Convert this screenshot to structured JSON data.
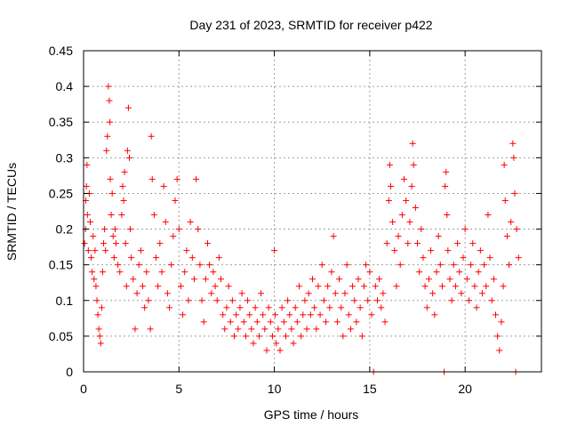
{
  "chart_data": {
    "type": "scatter",
    "title": "Day 231 of 2023, SRMTID for receiver p422",
    "xlabel": "GPS time / hours",
    "ylabel": "SRMTID / TECUs",
    "xlim": [
      0,
      24
    ],
    "ylim": [
      0,
      0.45
    ],
    "xticks": [
      0,
      5,
      10,
      15,
      20
    ],
    "yticks": [
      0,
      0.05,
      0.1,
      0.15,
      0.2,
      0.25,
      0.3,
      0.35,
      0.4,
      0.45
    ],
    "xtick_labels": [
      "0",
      "5",
      "10",
      "15",
      "20"
    ],
    "ytick_labels": [
      "0",
      "0.05",
      "0.1",
      "0.15",
      "0.2",
      "0.25",
      "0.3",
      "0.35",
      "0.4",
      "0.45"
    ],
    "grid": true,
    "color": "#ff0000",
    "marker": "+",
    "series": [
      {
        "name": "SRMTID",
        "points": [
          [
            0.05,
            0.18
          ],
          [
            0.1,
            0.2
          ],
          [
            0.12,
            0.24
          ],
          [
            0.15,
            0.26
          ],
          [
            0.18,
            0.29
          ],
          [
            0.2,
            0.22
          ],
          [
            0.25,
            0.17
          ],
          [
            0.3,
            0.25
          ],
          [
            0.35,
            0.21
          ],
          [
            0.4,
            0.16
          ],
          [
            0.45,
            0.14
          ],
          [
            0.5,
            0.19
          ],
          [
            0.55,
            0.13
          ],
          [
            0.6,
            0.17
          ],
          [
            0.65,
            0.12
          ],
          [
            0.7,
            0.1
          ],
          [
            0.75,
            0.08
          ],
          [
            0.8,
            0.06
          ],
          [
            0.85,
            0.05
          ],
          [
            0.9,
            0.04
          ],
          [
            0.95,
            0.09
          ],
          [
            1.0,
            0.14
          ],
          [
            1.05,
            0.18
          ],
          [
            1.1,
            0.2
          ],
          [
            1.15,
            0.17
          ],
          [
            1.2,
            0.31
          ],
          [
            1.25,
            0.33
          ],
          [
            1.3,
            0.4
          ],
          [
            1.35,
            0.38
          ],
          [
            1.38,
            0.35
          ],
          [
            1.4,
            0.27
          ],
          [
            1.45,
            0.22
          ],
          [
            1.5,
            0.25
          ],
          [
            1.55,
            0.19
          ],
          [
            1.6,
            0.16
          ],
          [
            1.65,
            0.2
          ],
          [
            1.7,
            0.18
          ],
          [
            1.8,
            0.15
          ],
          [
            1.9,
            0.14
          ],
          [
            2.0,
            0.22
          ],
          [
            2.05,
            0.26
          ],
          [
            2.1,
            0.24
          ],
          [
            2.15,
            0.28
          ],
          [
            2.2,
            0.18
          ],
          [
            2.25,
            0.12
          ],
          [
            2.3,
            0.31
          ],
          [
            2.35,
            0.37
          ],
          [
            2.4,
            0.3
          ],
          [
            2.45,
            0.2
          ],
          [
            2.5,
            0.16
          ],
          [
            2.6,
            0.13
          ],
          [
            2.7,
            0.06
          ],
          [
            2.8,
            0.11
          ],
          [
            2.9,
            0.15
          ],
          [
            3.0,
            0.17
          ],
          [
            3.1,
            0.12
          ],
          [
            3.2,
            0.09
          ],
          [
            3.3,
            0.14
          ],
          [
            3.4,
            0.1
          ],
          [
            3.5,
            0.06
          ],
          [
            3.55,
            0.33
          ],
          [
            3.6,
            0.27
          ],
          [
            3.7,
            0.22
          ],
          [
            3.8,
            0.16
          ],
          [
            3.9,
            0.12
          ],
          [
            4.0,
            0.18
          ],
          [
            4.1,
            0.14
          ],
          [
            4.2,
            0.26
          ],
          [
            4.3,
            0.21
          ],
          [
            4.4,
            0.11
          ],
          [
            4.5,
            0.09
          ],
          [
            4.6,
            0.15
          ],
          [
            4.7,
            0.19
          ],
          [
            4.8,
            0.24
          ],
          [
            4.9,
            0.27
          ],
          [
            5.0,
            0.2
          ],
          [
            5.1,
            0.12
          ],
          [
            5.2,
            0.08
          ],
          [
            5.3,
            0.14
          ],
          [
            5.4,
            0.17
          ],
          [
            5.5,
            0.1
          ],
          [
            5.6,
            0.21
          ],
          [
            5.7,
            0.16
          ],
          [
            5.8,
            0.13
          ],
          [
            5.9,
            0.27
          ],
          [
            6.0,
            0.2
          ],
          [
            6.1,
            0.15
          ],
          [
            6.2,
            0.1
          ],
          [
            6.3,
            0.07
          ],
          [
            6.4,
            0.13
          ],
          [
            6.5,
            0.18
          ],
          [
            6.6,
            0.15
          ],
          [
            6.7,
            0.11
          ],
          [
            6.8,
            0.14
          ],
          [
            6.9,
            0.12
          ],
          [
            7.0,
            0.1
          ],
          [
            7.1,
            0.16
          ],
          [
            7.2,
            0.13
          ],
          [
            7.3,
            0.08
          ],
          [
            7.4,
            0.06
          ],
          [
            7.5,
            0.09
          ],
          [
            7.6,
            0.12
          ],
          [
            7.7,
            0.07
          ],
          [
            7.8,
            0.1
          ],
          [
            7.9,
            0.05
          ],
          [
            8.0,
            0.08
          ],
          [
            8.1,
            0.06
          ],
          [
            8.2,
            0.09
          ],
          [
            8.3,
            0.11
          ],
          [
            8.4,
            0.07
          ],
          [
            8.5,
            0.05
          ],
          [
            8.6,
            0.1
          ],
          [
            8.7,
            0.08
          ],
          [
            8.8,
            0.06
          ],
          [
            8.9,
            0.04
          ],
          [
            9.0,
            0.09
          ],
          [
            9.1,
            0.07
          ],
          [
            9.2,
            0.05
          ],
          [
            9.3,
            0.11
          ],
          [
            9.4,
            0.08
          ],
          [
            9.5,
            0.06
          ],
          [
            9.6,
            0.03
          ],
          [
            9.7,
            0.09
          ],
          [
            9.8,
            0.07
          ],
          [
            9.9,
            0.05
          ],
          [
            10.0,
            0.17
          ],
          [
            10.05,
            0.08
          ],
          [
            10.1,
            0.04
          ],
          [
            10.2,
            0.06
          ],
          [
            10.3,
            0.03
          ],
          [
            10.4,
            0.09
          ],
          [
            10.5,
            0.07
          ],
          [
            10.6,
            0.05
          ],
          [
            10.7,
            0.1
          ],
          [
            10.8,
            0.08
          ],
          [
            10.9,
            0.06
          ],
          [
            11.0,
            0.04
          ],
          [
            11.1,
            0.09
          ],
          [
            11.2,
            0.07
          ],
          [
            11.3,
            0.12
          ],
          [
            11.4,
            0.05
          ],
          [
            11.5,
            0.08
          ],
          [
            11.6,
            0.1
          ],
          [
            11.7,
            0.06
          ],
          [
            11.8,
            0.11
          ],
          [
            11.9,
            0.08
          ],
          [
            12.0,
            0.13
          ],
          [
            12.1,
            0.09
          ],
          [
            12.2,
            0.06
          ],
          [
            12.3,
            0.12
          ],
          [
            12.4,
            0.08
          ],
          [
            12.5,
            0.15
          ],
          [
            12.6,
            0.1
          ],
          [
            12.7,
            0.07
          ],
          [
            12.8,
            0.12
          ],
          [
            12.9,
            0.09
          ],
          [
            13.0,
            0.14
          ],
          [
            13.1,
            0.19
          ],
          [
            13.2,
            0.11
          ],
          [
            13.3,
            0.07
          ],
          [
            13.4,
            0.13
          ],
          [
            13.5,
            0.09
          ],
          [
            13.6,
            0.05
          ],
          [
            13.7,
            0.11
          ],
          [
            13.8,
            0.15
          ],
          [
            13.9,
            0.08
          ],
          [
            14.0,
            0.06
          ],
          [
            14.1,
            0.12
          ],
          [
            14.2,
            0.1
          ],
          [
            14.3,
            0.07
          ],
          [
            14.4,
            0.13
          ],
          [
            14.5,
            0.09
          ],
          [
            14.6,
            0.05
          ],
          [
            14.7,
            0.12
          ],
          [
            14.8,
            0.15
          ],
          [
            14.9,
            0.1
          ],
          [
            15.0,
            0.14
          ],
          [
            15.1,
            0.08
          ],
          [
            15.2,
            0.0
          ],
          [
            15.3,
            0.12
          ],
          [
            15.4,
            0.1
          ],
          [
            15.5,
            0.13
          ],
          [
            15.6,
            0.09
          ],
          [
            15.7,
            0.11
          ],
          [
            15.8,
            0.07
          ],
          [
            15.9,
            0.18
          ],
          [
            16.0,
            0.24
          ],
          [
            16.05,
            0.29
          ],
          [
            16.1,
            0.26
          ],
          [
            16.2,
            0.21
          ],
          [
            16.3,
            0.17
          ],
          [
            16.4,
            0.12
          ],
          [
            16.5,
            0.19
          ],
          [
            16.6,
            0.15
          ],
          [
            16.7,
            0.22
          ],
          [
            16.8,
            0.27
          ],
          [
            16.9,
            0.24
          ],
          [
            17.0,
            0.18
          ],
          [
            17.1,
            0.21
          ],
          [
            17.2,
            0.26
          ],
          [
            17.25,
            0.32
          ],
          [
            17.3,
            0.29
          ],
          [
            17.4,
            0.23
          ],
          [
            17.5,
            0.18
          ],
          [
            17.6,
            0.14
          ],
          [
            17.7,
            0.2
          ],
          [
            17.8,
            0.16
          ],
          [
            17.9,
            0.12
          ],
          [
            18.0,
            0.09
          ],
          [
            18.1,
            0.13
          ],
          [
            18.2,
            0.17
          ],
          [
            18.3,
            0.11
          ],
          [
            18.4,
            0.08
          ],
          [
            18.5,
            0.14
          ],
          [
            18.6,
            0.19
          ],
          [
            18.7,
            0.15
          ],
          [
            18.8,
            0.12
          ],
          [
            18.9,
            0.0
          ],
          [
            18.95,
            0.26
          ],
          [
            19.0,
            0.28
          ],
          [
            19.05,
            0.22
          ],
          [
            19.1,
            0.17
          ],
          [
            19.2,
            0.13
          ],
          [
            19.3,
            0.1
          ],
          [
            19.4,
            0.15
          ],
          [
            19.5,
            0.12
          ],
          [
            19.6,
            0.18
          ],
          [
            19.7,
            0.14
          ],
          [
            19.8,
            0.11
          ],
          [
            19.9,
            0.16
          ],
          [
            20.0,
            0.2
          ],
          [
            20.1,
            0.13
          ],
          [
            20.2,
            0.1
          ],
          [
            20.3,
            0.15
          ],
          [
            20.4,
            0.18
          ],
          [
            20.5,
            0.12
          ],
          [
            20.6,
            0.09
          ],
          [
            20.7,
            0.14
          ],
          [
            20.8,
            0.17
          ],
          [
            20.9,
            0.11
          ],
          [
            21.0,
            0.15
          ],
          [
            21.1,
            0.12
          ],
          [
            21.2,
            0.22
          ],
          [
            21.3,
            0.16
          ],
          [
            21.4,
            0.1
          ],
          [
            21.5,
            0.13
          ],
          [
            21.6,
            0.08
          ],
          [
            21.7,
            0.05
          ],
          [
            21.8,
            0.03
          ],
          [
            21.9,
            0.07
          ],
          [
            22.0,
            0.12
          ],
          [
            22.05,
            0.29
          ],
          [
            22.1,
            0.24
          ],
          [
            22.2,
            0.19
          ],
          [
            22.3,
            0.15
          ],
          [
            22.4,
            0.21
          ],
          [
            22.5,
            0.32
          ],
          [
            22.55,
            0.3
          ],
          [
            22.6,
            0.25
          ],
          [
            22.65,
            0.0
          ],
          [
            22.7,
            0.2
          ],
          [
            22.8,
            0.16
          ]
        ]
      }
    ]
  }
}
